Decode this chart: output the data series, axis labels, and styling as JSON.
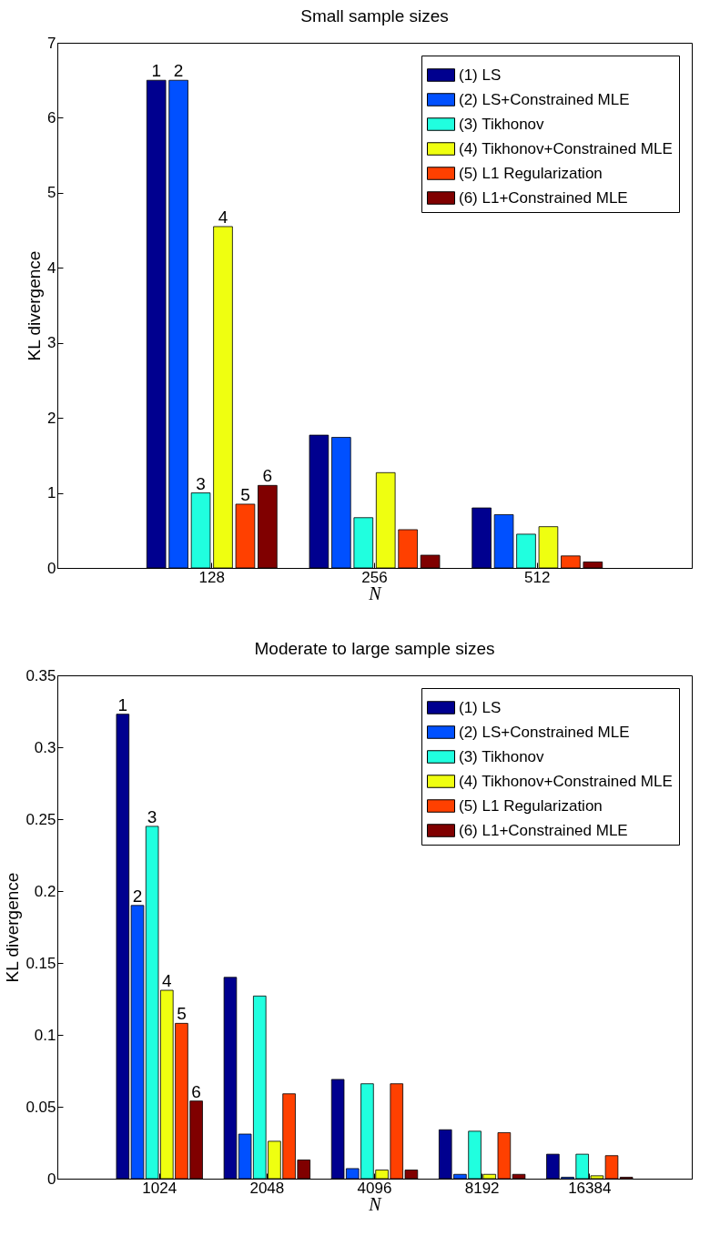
{
  "chart_data": [
    {
      "type": "bar",
      "title": "Small sample sizes",
      "xlabel": "N",
      "ylabel": "KL divergence",
      "categories": [
        "128",
        "256",
        "512"
      ],
      "ylim": [
        0,
        7
      ],
      "yticks": [
        0,
        1,
        2,
        3,
        4,
        5,
        6,
        7
      ],
      "grid": false,
      "legend": "top right",
      "series": [
        {
          "name": "(1) LS",
          "color": "#00008f",
          "values": [
            6.5,
            1.77,
            0.8
          ]
        },
        {
          "name": "(2) LS+Constrained MLE",
          "color": "#0050ff",
          "values": [
            6.5,
            1.74,
            0.71
          ]
        },
        {
          "name": "(3) Tikhonov",
          "color": "#20ffdf",
          "values": [
            1.0,
            0.67,
            0.45
          ]
        },
        {
          "name": "(4) Tikhonov+Constrained MLE",
          "color": "#efff10",
          "values": [
            4.55,
            1.27,
            0.55
          ]
        },
        {
          "name": "(5) L1 Regularization",
          "color": "#ff4000",
          "values": [
            0.85,
            0.51,
            0.16
          ]
        },
        {
          "name": "(6) L1+Constrained MLE",
          "color": "#800000",
          "values": [
            1.1,
            0.17,
            0.08
          ]
        }
      ],
      "annotations": [
        "1",
        "2",
        {
          "text": "3",
          "x": "128",
          "y": 1.0
        },
        {
          "text": "4",
          "x": "128",
          "y": 4.55
        },
        {
          "text": "5",
          "x": "128",
          "y": 0.85
        },
        {
          "text": "6",
          "x": "128",
          "y": 1.1
        }
      ]
    },
    {
      "type": "bar",
      "title": "Moderate to large sample sizes",
      "xlabel": "N",
      "ylabel": "KL divergence",
      "categories": [
        "1024",
        "2048",
        "4096",
        "8192",
        "16384"
      ],
      "ylim": [
        0,
        0.35
      ],
      "yticks": [
        0,
        0.05,
        0.1,
        0.15,
        0.2,
        0.25,
        0.3,
        0.35
      ],
      "grid": false,
      "legend": "top right",
      "series": [
        {
          "name": "(1) LS",
          "color": "#00008f",
          "values": [
            0.323,
            0.14,
            0.069,
            0.034,
            0.017
          ]
        },
        {
          "name": "(2) LS+Constrained MLE",
          "color": "#0050ff",
          "values": [
            0.19,
            0.031,
            0.007,
            0.003,
            0.001
          ]
        },
        {
          "name": "(3) Tikhonov",
          "color": "#20ffdf",
          "values": [
            0.245,
            0.127,
            0.066,
            0.033,
            0.017
          ]
        },
        {
          "name": "(4) Tikhonov+Constrained MLE",
          "color": "#efff10",
          "values": [
            0.131,
            0.026,
            0.006,
            0.003,
            0.002
          ]
        },
        {
          "name": "(5) L1 Regularization",
          "color": "#ff4000",
          "values": [
            0.108,
            0.059,
            0.066,
            0.032,
            0.016
          ]
        },
        {
          "name": "(6) L1+Constrained MLE",
          "color": "#800000",
          "values": [
            0.054,
            0.013,
            0.006,
            0.003,
            0.001
          ]
        }
      ],
      "annotations": [
        "1",
        {
          "text": "2",
          "x": "1024",
          "y": 0.19
        },
        {
          "text": "3",
          "x": "1024",
          "y": 0.245
        },
        {
          "text": "4",
          "x": "1024",
          "y": 0.131
        },
        {
          "text": "5",
          "x": "1024",
          "y": 0.108
        },
        {
          "text": "6",
          "x": "1024",
          "y": 0.054
        }
      ]
    }
  ]
}
